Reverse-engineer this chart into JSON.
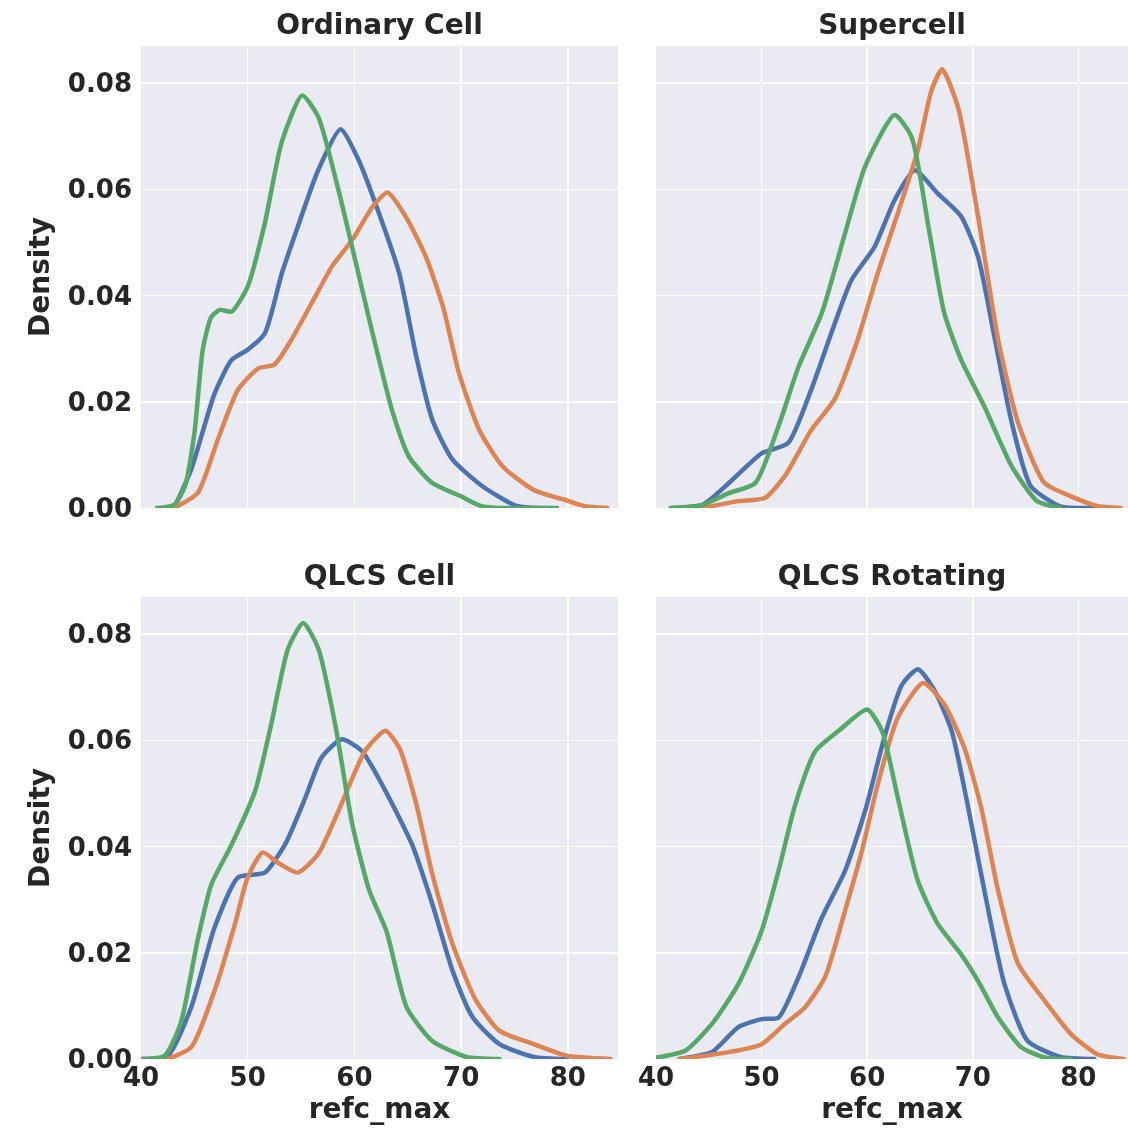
{
  "chart_data": [
    {
      "type": "line",
      "title": "Ordinary Cell",
      "ylabel": "Density",
      "xlim": [
        40,
        84.7
      ],
      "ylim": [
        0,
        0.087
      ],
      "xticks": [
        40,
        50,
        60,
        70,
        80
      ],
      "yticks": [
        {
          "value": 0,
          "label": "0.00"
        },
        {
          "value": 0.02,
          "label": "0.02"
        },
        {
          "value": 0.04,
          "label": "0.04"
        },
        {
          "value": 0.06,
          "label": "0.06"
        },
        {
          "value": 0.08,
          "label": "0.08"
        }
      ],
      "grid": true,
      "tick_labels": "y",
      "series": [
        {
          "color": "#4c72b0",
          "x": [
            43.1,
            44.7,
            46.9,
            48.5,
            50,
            51.6,
            53.2,
            54.7,
            56.6,
            58.7,
            60.4,
            62.3,
            64.2,
            65.8,
            67.3,
            69.2,
            72,
            75.2,
            78.3
          ],
          "values": [
            0,
            0.0072,
            0.0216,
            0.0279,
            0.0298,
            0.0329,
            0.0442,
            0.053,
            0.0636,
            0.0713,
            0.0655,
            0.0555,
            0.0442,
            0.0285,
            0.0166,
            0.0091,
            0.0041,
            0.0004,
            0
          ]
        },
        {
          "color": "#dd8452",
          "x": [
            43.1,
            45.3,
            47.2,
            49.1,
            51,
            52.5,
            54.1,
            56,
            57.9,
            59.8,
            61.7,
            63.1,
            64.8,
            66.7,
            68.3,
            69.8,
            71.7,
            73.9,
            76.8,
            79.6,
            81.5,
            83.7
          ],
          "values": [
            0,
            0.0028,
            0.0129,
            0.0223,
            0.0263,
            0.027,
            0.0317,
            0.0386,
            0.0455,
            0.0505,
            0.0567,
            0.0594,
            0.0549,
            0.0473,
            0.0379,
            0.0254,
            0.0147,
            0.0078,
            0.0034,
            0.0016,
            0.0004,
            0
          ]
        },
        {
          "color": "#55a868",
          "x": [
            41.5,
            43.1,
            44.1,
            45,
            45.8,
            46.6,
            47.4,
            48.5,
            50,
            51.6,
            53.2,
            55.1,
            56.6,
            58.5,
            60,
            61.7,
            63.6,
            65.1,
            67.3,
            70,
            72,
            79
          ],
          "values": [
            0,
            0.0006,
            0.004,
            0.014,
            0.03,
            0.036,
            0.0373,
            0.037,
            0.0417,
            0.0536,
            0.069,
            0.0777,
            0.0737,
            0.0599,
            0.0473,
            0.0329,
            0.0179,
            0.0097,
            0.0047,
            0.0022,
            0.0003,
            0
          ]
        }
      ]
    },
    {
      "type": "line",
      "title": "Supercell",
      "xlim": [
        40,
        84.7
      ],
      "ylim": [
        0,
        0.087
      ],
      "xticks": [
        40,
        50,
        60,
        70,
        80
      ],
      "yticks": [
        0,
        0.02,
        0.04,
        0.06,
        0.08
      ],
      "grid": true,
      "tick_labels": false,
      "series": [
        {
          "color": "#4c72b0",
          "x": [
            41.4,
            44.4,
            46.9,
            50,
            52.5,
            54.7,
            56.6,
            58.5,
            60.7,
            62.6,
            64.5,
            66.7,
            68.9,
            70.5,
            72.1,
            73.7,
            75.5,
            78.3,
            81.5
          ],
          "values": [
            0,
            0.0006,
            0.0047,
            0.0103,
            0.0122,
            0.0223,
            0.0329,
            0.0429,
            0.0492,
            0.058,
            0.0636,
            0.0592,
            0.0549,
            0.0473,
            0.0317,
            0.016,
            0.0041,
            0.0003,
            0
          ]
        },
        {
          "color": "#dd8452",
          "x": [
            44.4,
            47.8,
            50.3,
            52.2,
            54.7,
            56.9,
            59.1,
            61,
            62.9,
            64.8,
            66.1,
            67.1,
            68.6,
            70.5,
            72.4,
            74.3,
            76.8,
            79.3,
            81.8,
            84
          ],
          "values": [
            0,
            0.0013,
            0.0019,
            0.006,
            0.0147,
            0.0204,
            0.0317,
            0.0442,
            0.0555,
            0.0674,
            0.0787,
            0.0826,
            0.0755,
            0.0549,
            0.0317,
            0.016,
            0.0047,
            0.0022,
            0.0004,
            0
          ]
        },
        {
          "color": "#55a868",
          "x": [
            41.4,
            44.4,
            46.9,
            49.4,
            51.6,
            53.5,
            55.7,
            57.9,
            59.8,
            62.6,
            64.2,
            65.8,
            67.3,
            68.9,
            71.1,
            73.7,
            76.1,
            78.3
          ],
          "values": [
            0,
            0.0006,
            0.0028,
            0.0047,
            0.0154,
            0.0266,
            0.0367,
            0.0517,
            0.0643,
            0.074,
            0.0699,
            0.053,
            0.0367,
            0.0279,
            0.0191,
            0.0078,
            0.0013,
            0
          ]
        }
      ]
    },
    {
      "type": "line",
      "title": "QLCS Cell",
      "xlabel": "refc_max",
      "ylabel": "Density",
      "xlim": [
        40,
        84.7
      ],
      "ylim": [
        0,
        0.087
      ],
      "xticks": [
        40,
        50,
        60,
        70,
        80
      ],
      "yticks": [
        {
          "value": 0,
          "label": "0.00"
        },
        {
          "value": 0.02,
          "label": "0.02"
        },
        {
          "value": 0.04,
          "label": "0.04"
        },
        {
          "value": 0.06,
          "label": "0.06"
        },
        {
          "value": 0.08,
          "label": "0.08"
        }
      ],
      "grid": true,
      "series": [
        {
          "color": "#4c72b0",
          "x": [
            40.1,
            42.5,
            44.7,
            46.9,
            49.1,
            51.6,
            53.5,
            55.4,
            56.9,
            58.8,
            60.7,
            62.9,
            65.4,
            67.3,
            69.2,
            71.1,
            73.6,
            76.8,
            79.9
          ],
          "values": [
            0,
            0.0006,
            0.0097,
            0.0248,
            0.0342,
            0.0351,
            0.0404,
            0.0492,
            0.0567,
            0.0602,
            0.058,
            0.0505,
            0.0404,
            0.0292,
            0.0166,
            0.0078,
            0.0028,
            0.0004,
            0
          ]
        },
        {
          "color": "#dd8452",
          "x": [
            42.5,
            44.7,
            46.9,
            48.8,
            50,
            51.4,
            52.8,
            54.7,
            56.6,
            58.5,
            61,
            62.9,
            64.2,
            65.8,
            67.3,
            69.2,
            71.4,
            73.6,
            76.8,
            79.9,
            84
          ],
          "values": [
            0,
            0.0022,
            0.0129,
            0.0254,
            0.0342,
            0.0389,
            0.037,
            0.0351,
            0.0386,
            0.0467,
            0.058,
            0.0618,
            0.0586,
            0.048,
            0.0348,
            0.0216,
            0.011,
            0.0053,
            0.0028,
            0.0006,
            0
          ]
        },
        {
          "color": "#55a868",
          "x": [
            40.1,
            42.2,
            43.7,
            45.3,
            46.6,
            48.5,
            50.7,
            52.2,
            53.8,
            55.2,
            56.6,
            58.2,
            59.8,
            61.4,
            63,
            64.9,
            67.3,
            70.5,
            73.6
          ],
          "values": [
            0,
            0.0006,
            0.0066,
            0.0223,
            0.0329,
            0.0404,
            0.0505,
            0.063,
            0.0774,
            0.0821,
            0.0774,
            0.063,
            0.0442,
            0.0317,
            0.0241,
            0.0097,
            0.0034,
            0.0004,
            0
          ]
        }
      ]
    },
    {
      "type": "line",
      "title": "QLCS Rotating",
      "xlabel": "refc_max",
      "xlim": [
        40,
        84.7
      ],
      "ylim": [
        0,
        0.087
      ],
      "xticks": [
        40,
        50,
        60,
        70,
        80
      ],
      "yticks": [
        0,
        0.02,
        0.04,
        0.06,
        0.08
      ],
      "grid": true,
      "tick_labels": "x",
      "series": [
        {
          "color": "#4c72b0",
          "x": [
            42.2,
            45.3,
            47.8,
            50,
            51.6,
            53.5,
            55.7,
            57.9,
            59.8,
            61.7,
            63.3,
            64.8,
            66.4,
            68,
            69.5,
            71.1,
            73,
            75.2,
            78.3,
            81.5
          ],
          "values": [
            0,
            0.0013,
            0.006,
            0.0075,
            0.0078,
            0.0154,
            0.0266,
            0.0354,
            0.0467,
            0.0611,
            0.0705,
            0.0734,
            0.0693,
            0.0618,
            0.048,
            0.0317,
            0.0141,
            0.0034,
            0.0004,
            0
          ]
        },
        {
          "color": "#dd8452",
          "x": [
            42.2,
            46.9,
            50,
            52.2,
            54.1,
            56,
            57.9,
            59.5,
            61,
            62.9,
            65.3,
            67.3,
            69.2,
            70.8,
            72.4,
            74.3,
            76.8,
            79.3,
            81.8,
            84.3
          ],
          "values": [
            0,
            0.0013,
            0.0028,
            0.0066,
            0.0097,
            0.0154,
            0.0279,
            0.0392,
            0.0517,
            0.0643,
            0.0708,
            0.0668,
            0.0586,
            0.0473,
            0.0317,
            0.0179,
            0.011,
            0.0047,
            0.0009,
            0
          ]
        },
        {
          "color": "#55a868",
          "x": [
            40.1,
            42.8,
            45.3,
            47.8,
            50,
            51.6,
            53.2,
            55.1,
            57.3,
            60,
            61.4,
            62.9,
            64.8,
            66.7,
            68.9,
            70.5,
            72.4,
            74.6,
            76.8,
            79.3
          ],
          "values": [
            0.0003,
            0.0016,
            0.0066,
            0.0141,
            0.0241,
            0.0354,
            0.048,
            0.058,
            0.0618,
            0.0658,
            0.0618,
            0.0492,
            0.0335,
            0.0254,
            0.0197,
            0.0147,
            0.0078,
            0.0022,
            0.0003,
            0
          ]
        }
      ]
    }
  ]
}
